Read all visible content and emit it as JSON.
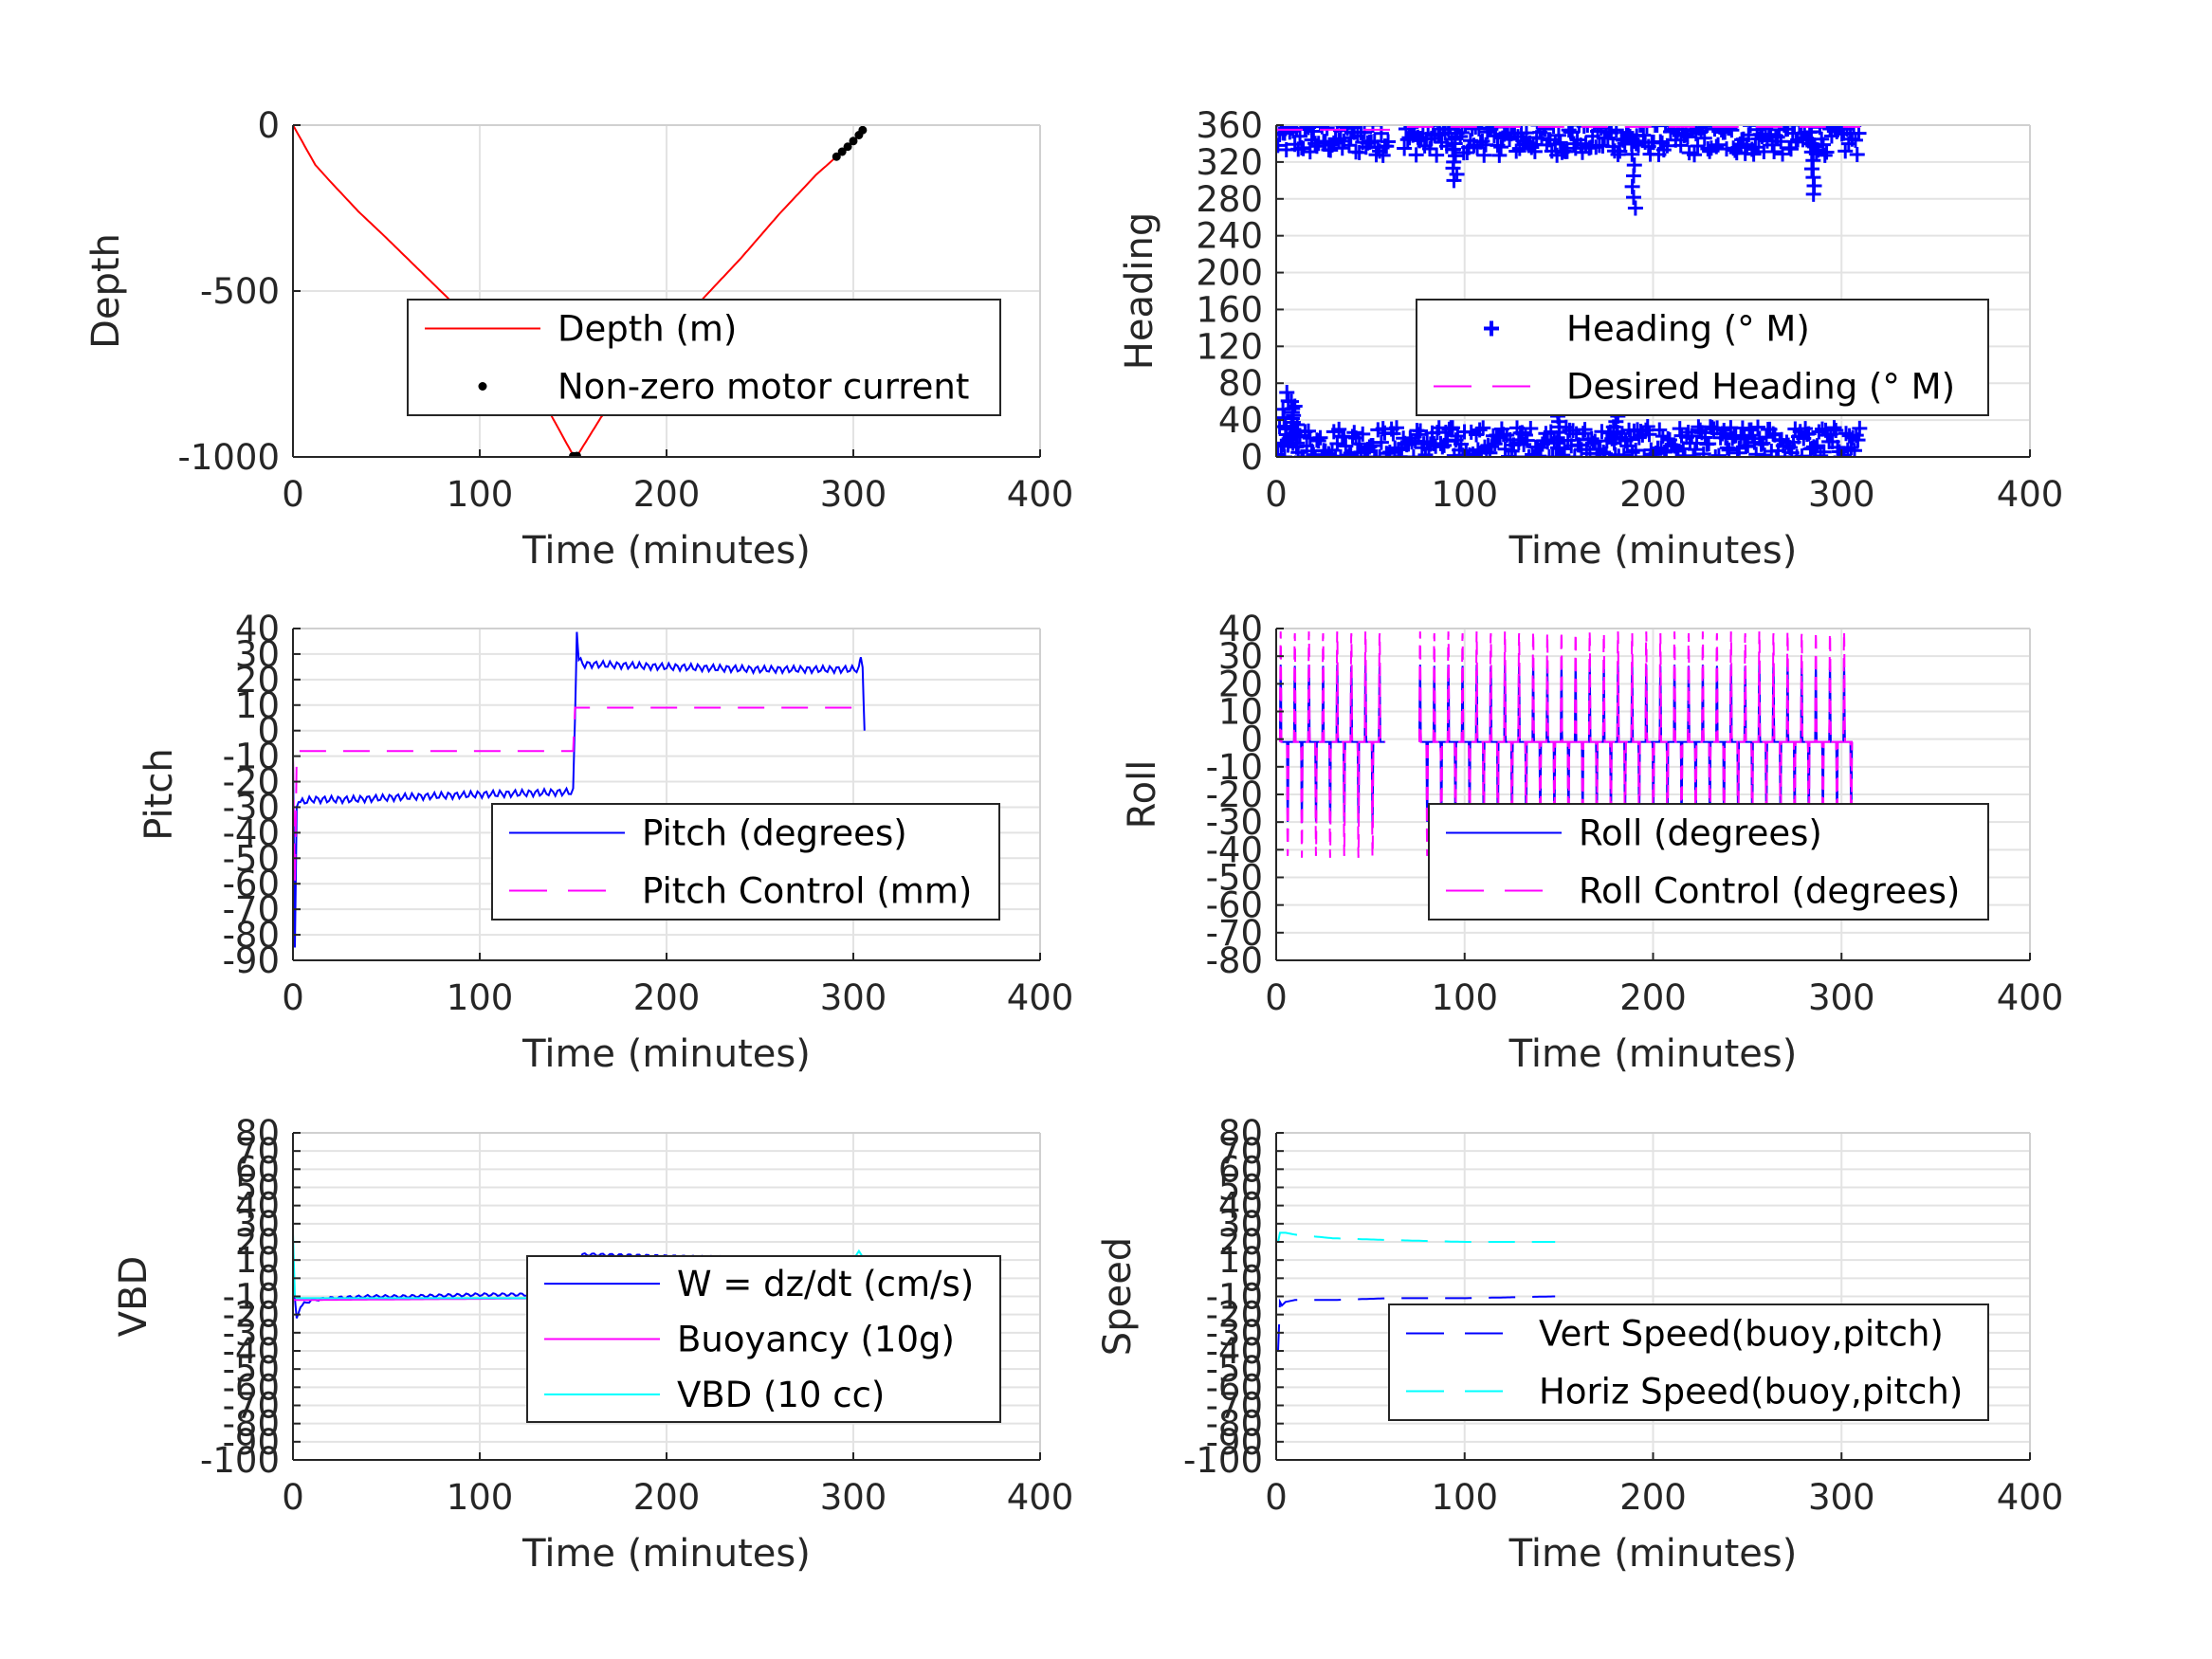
{
  "chart_data": [
    {
      "id": "depth",
      "type": "line",
      "xlabel": "Time (minutes)",
      "ylabel": "Depth",
      "xlim": [
        0,
        400
      ],
      "ylim": [
        -1000,
        0
      ],
      "xticks": [
        0,
        100,
        200,
        300,
        400
      ],
      "yticks": [
        -1000,
        -500,
        0
      ],
      "ytick_labels": [
        "-1000",
        "-500",
        "0"
      ],
      "grid": true,
      "legend_placement": "lower-right",
      "series": [
        {
          "name": "Depth (m)",
          "style": "solid",
          "color": "#ff0000",
          "mark": "line",
          "x": [
            0,
            5,
            12,
            20,
            35,
            50,
            70,
            90,
            110,
            130,
            150,
            152,
            165,
            180,
            200,
            220,
            240,
            260,
            280,
            290,
            300,
            306
          ],
          "y": [
            0,
            -50,
            -120,
            -170,
            -260,
            -340,
            -450,
            -560,
            -670,
            -790,
            -995,
            -998,
            -880,
            -780,
            -650,
            -520,
            -400,
            -270,
            -150,
            -100,
            -50,
            -10
          ]
        },
        {
          "name": "Non-zero motor current",
          "style": "dots",
          "color": "#000000",
          "mark": "dots",
          "x": [
            150,
            151,
            152,
            291,
            294,
            297,
            300,
            303,
            305
          ],
          "y": [
            -998,
            -999,
            -997,
            -95,
            -80,
            -65,
            -48,
            -30,
            -15
          ]
        }
      ]
    },
    {
      "id": "heading",
      "type": "scatter",
      "xlabel": "Time (minutes)",
      "ylabel": "Heading",
      "xlim": [
        0,
        400
      ],
      "ylim": [
        0,
        360
      ],
      "xticks": [
        0,
        100,
        200,
        300,
        400
      ],
      "yticks": [
        0,
        40,
        80,
        120,
        160,
        200,
        240,
        280,
        320,
        360
      ],
      "ytick_labels": [
        "0",
        "40",
        "80",
        "120",
        "160",
        "200",
        "240",
        "280",
        "320",
        "360"
      ],
      "grid": true,
      "legend_placement": "lower-right",
      "series": [
        {
          "name": "Heading (° M)",
          "style": "markers",
          "color": "#0000ff",
          "mark": "plus",
          "upper_band": {
            "x_ranges": [
              [
                0,
                60
              ],
              [
                68,
                310
              ]
            ],
            "center": 345,
            "spread": 18
          },
          "lower_band": {
            "x_ranges": [
              [
                0,
                310
              ]
            ],
            "center": 15,
            "spread": 18
          },
          "spikes": [
            [
              5,
              70
            ],
            [
              8,
              60
            ],
            [
              10,
              55
            ],
            [
              95,
              300
            ],
            [
              190,
              270
            ],
            [
              285,
              285
            ],
            [
              150,
              50
            ],
            [
              180,
              50
            ]
          ]
        },
        {
          "name": "Desired Heading (° M)",
          "style": "dashed",
          "color": "#ff00ff",
          "mark": "line",
          "x": [
            0,
            60,
            70,
            310
          ],
          "y": [
            355,
            355,
            358,
            358
          ]
        }
      ]
    },
    {
      "id": "pitch",
      "type": "line",
      "xlabel": "Time (minutes)",
      "ylabel": "Pitch",
      "xlim": [
        0,
        400
      ],
      "ylim": [
        -90,
        40
      ],
      "xticks": [
        0,
        100,
        200,
        300,
        400
      ],
      "yticks": [
        -90,
        -80,
        -70,
        -60,
        -50,
        -40,
        -30,
        -20,
        -10,
        0,
        10,
        20,
        30,
        40
      ],
      "ytick_labels": [
        "-90",
        "-80",
        "-70",
        "-60",
        "-50",
        "-40",
        "-30",
        "-20",
        "-10",
        "0",
        "10",
        "20",
        "30",
        "40"
      ],
      "grid": true,
      "legend_placement": "lower-right",
      "series": [
        {
          "name": "Pitch (degrees)",
          "style": "solid",
          "color": "#0000ff",
          "mark": "line",
          "x": [
            0,
            1,
            2,
            3,
            5,
            10,
            30,
            60,
            100,
            150,
            151,
            152,
            153,
            155,
            160,
            200,
            250,
            303,
            304,
            305,
            306
          ],
          "y": [
            -10,
            -85,
            -30,
            -28,
            -28,
            -27,
            -27,
            -26,
            -25,
            -24,
            5,
            40,
            28,
            26,
            26,
            25,
            24,
            24,
            28,
            26,
            0
          ]
        },
        {
          "name": "Pitch Control (mm)",
          "style": "dashed",
          "color": "#ff00ff",
          "mark": "line",
          "x": [
            0,
            1,
            2,
            3,
            150,
            151,
            152,
            306
          ],
          "y": [
            -10,
            -60,
            -10,
            -8,
            -8,
            9,
            9,
            9
          ]
        }
      ]
    },
    {
      "id": "roll",
      "type": "line",
      "xlabel": "Time (minutes)",
      "ylabel": "Roll",
      "xlim": [
        0,
        400
      ],
      "ylim": [
        -80,
        40
      ],
      "xticks": [
        0,
        100,
        200,
        300,
        400
      ],
      "yticks": [
        -80,
        -70,
        -60,
        -50,
        -40,
        -30,
        -20,
        -10,
        0,
        10,
        20,
        30,
        40
      ],
      "ytick_labels": [
        "-80",
        "-70",
        "-60",
        "-50",
        "-40",
        "-30",
        "-20",
        "-10",
        "0",
        "10",
        "20",
        "30",
        "40"
      ],
      "grid": true,
      "legend_placement": "lower-right",
      "series": [
        {
          "name": "Roll (degrees)",
          "style": "solid",
          "color": "#0000ff",
          "mark": "oscillation",
          "segments": [
            [
              2,
              58
            ],
            [
              76,
              306
            ]
          ],
          "baseline": -1,
          "amplitude": 28,
          "period_min": 7.5
        },
        {
          "name": "Roll Control (degrees)",
          "style": "dashed",
          "color": "#ff00ff",
          "mark": "oscillation",
          "segments": [
            [
              2,
              58
            ],
            [
              76,
              306
            ]
          ],
          "baseline": -1,
          "amplitude": 40,
          "period_min": 7.5
        }
      ]
    },
    {
      "id": "vbd",
      "type": "line",
      "xlabel": "Time (minutes)",
      "ylabel": "VBD",
      "xlim": [
        0,
        400
      ],
      "ylim": [
        -100,
        80
      ],
      "xticks": [
        0,
        100,
        200,
        300,
        400
      ],
      "yticks": [
        -100,
        -90,
        -80,
        -70,
        -60,
        -50,
        -40,
        -30,
        -20,
        -10,
        0,
        10,
        20,
        30,
        40,
        50,
        60,
        70,
        80
      ],
      "ytick_labels": [
        "-100",
        "-90",
        "-80",
        "-70",
        "-60",
        "-50",
        "-40",
        "-30",
        "-20",
        "-10",
        "0",
        "10",
        "20",
        "30",
        "40",
        "50",
        "60",
        "70",
        "80"
      ],
      "grid": true,
      "legend_placement": "lower-right",
      "series": [
        {
          "name": "W = dz/dt (cm/s)",
          "style": "solid",
          "color": "#0000ff",
          "mark": "line",
          "x": [
            0,
            2,
            4,
            6,
            10,
            20,
            40,
            60,
            100,
            149,
            150,
            152,
            155,
            160,
            200,
            250,
            300,
            303,
            306
          ],
          "y": [
            0,
            -22,
            -16,
            -14,
            -12,
            -11,
            -10,
            -10,
            -9,
            -9,
            -5,
            10,
            13,
            13,
            12,
            11,
            10,
            12,
            5
          ]
        },
        {
          "name": "Buoyancy (10g)",
          "style": "solid",
          "color": "#ff00ff",
          "mark": "line",
          "x": [
            0,
            2,
            150,
            152,
            306
          ],
          "y": [
            -12,
            -12,
            -11,
            10,
            10
          ]
        },
        {
          "name": "VBD (10 cc)",
          "style": "solid",
          "color": "#00ffff",
          "mark": "line",
          "x": [
            0,
            1,
            2,
            150,
            151,
            152,
            300,
            303,
            306
          ],
          "y": [
            25,
            -10,
            -11,
            -11,
            -10,
            10,
            10,
            15,
            10
          ]
        }
      ]
    },
    {
      "id": "speed",
      "type": "line",
      "xlabel": "Time (minutes)",
      "ylabel": "Speed",
      "xlim": [
        0,
        400
      ],
      "ylim": [
        -100,
        80
      ],
      "xticks": [
        0,
        100,
        200,
        300,
        400
      ],
      "yticks": [
        -100,
        -90,
        -80,
        -70,
        -60,
        -50,
        -40,
        -30,
        -20,
        -10,
        0,
        10,
        20,
        30,
        40,
        50,
        60,
        70,
        80
      ],
      "ytick_labels": [
        "-100",
        "-90",
        "-80",
        "-70",
        "-60",
        "-50",
        "-40",
        "-30",
        "-20",
        "-10",
        "0",
        "10",
        "20",
        "30",
        "40",
        "50",
        "60",
        "70",
        "80"
      ],
      "grid": true,
      "legend_placement": "lower-right",
      "series": [
        {
          "name": "Vert Speed(buoy,pitch)",
          "style": "dashed",
          "color": "#0000ff",
          "mark": "line",
          "x": [
            1,
            2,
            3,
            5,
            10,
            30,
            60,
            100,
            148
          ],
          "y": [
            -40,
            -13,
            -15,
            -13,
            -12,
            -12,
            -11,
            -11,
            -10
          ]
        },
        {
          "name": "Horiz Speed(buoy,pitch)",
          "style": "dashed",
          "color": "#00ffff",
          "mark": "line",
          "x": [
            1,
            2,
            5,
            10,
            30,
            60,
            100,
            148
          ],
          "y": [
            20,
            25,
            25,
            24,
            22,
            21,
            20,
            20
          ]
        }
      ]
    }
  ]
}
